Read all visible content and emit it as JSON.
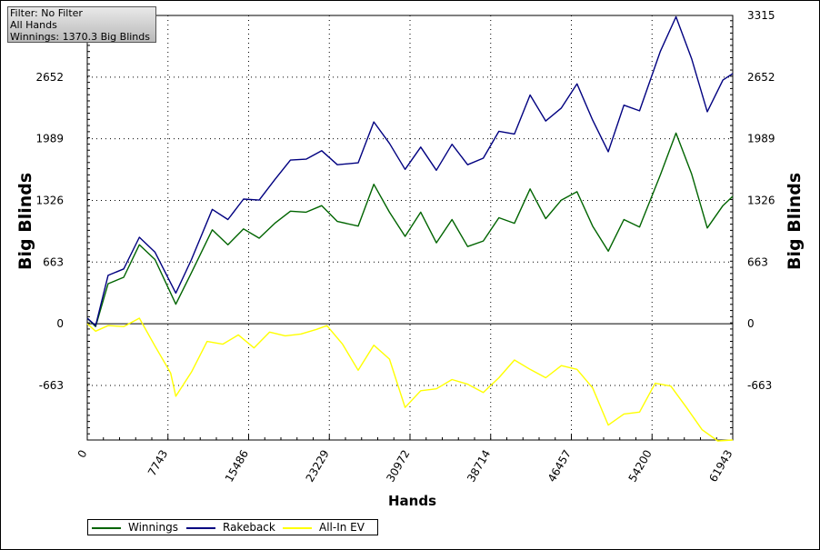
{
  "infobox": {
    "filter": "Filter: No Filter",
    "hands": "All Hands",
    "winnings": "Winnings: 1370.3 Big Blinds"
  },
  "chart_data": {
    "type": "line",
    "xlabel": "Hands",
    "ylabel_left": "Big Blinds",
    "ylabel_right": "Big Blinds",
    "xlim": [
      0,
      61943
    ],
    "ylim": [
      -1250,
      3315
    ],
    "x_ticks": [
      0,
      7743,
      15486,
      23229,
      30972,
      38714,
      46457,
      54200,
      61943
    ],
    "y_ticks": [
      -663,
      0,
      663,
      1326,
      1989,
      2652,
      3315
    ],
    "y_tick_labels_left": [
      "-663",
      "0",
      "663",
      "1326",
      "1989",
      "2652"
    ],
    "y_tick_labels_right": [
      "-663",
      "0",
      "663",
      "1326",
      "1989",
      "2652",
      "3315"
    ],
    "grid": true,
    "legend_position": "bottom-left",
    "series": [
      {
        "name": "Winnings",
        "color": "#006400",
        "x": [
          0,
          800,
          2000,
          3500,
          5000,
          6500,
          8500,
          10000,
          12000,
          13500,
          15000,
          16500,
          18000,
          19500,
          21000,
          22500,
          24000,
          26000,
          27500,
          29000,
          30500,
          32000,
          33500,
          35000,
          36500,
          38000,
          39500,
          41000,
          42500,
          44000,
          45500,
          47000,
          48500,
          50000,
          51500,
          53000,
          55000,
          56500,
          58000,
          59500,
          61000,
          61943
        ],
        "y": [
          60,
          -30,
          430,
          500,
          850,
          690,
          210,
          550,
          1010,
          850,
          1020,
          920,
          1080,
          1210,
          1200,
          1270,
          1100,
          1050,
          1500,
          1200,
          940,
          1200,
          870,
          1120,
          830,
          890,
          1140,
          1080,
          1450,
          1130,
          1330,
          1420,
          1050,
          780,
          1120,
          1040,
          1600,
          2050,
          1610,
          1030,
          1270,
          1370
        ]
      },
      {
        "name": "Rakeback",
        "color": "#000080",
        "x": [
          0,
          800,
          2000,
          3500,
          5000,
          6500,
          8500,
          10000,
          12000,
          13500,
          15000,
          16500,
          18000,
          19500,
          21000,
          22500,
          24000,
          26000,
          27500,
          29000,
          30500,
          32000,
          33500,
          35000,
          36500,
          38000,
          39500,
          41000,
          42500,
          44000,
          45500,
          47000,
          48500,
          50000,
          51500,
          53000,
          55000,
          56500,
          58000,
          59500,
          61000,
          61943
        ],
        "y": [
          60,
          -20,
          520,
          590,
          930,
          770,
          330,
          690,
          1230,
          1120,
          1340,
          1330,
          1550,
          1760,
          1770,
          1860,
          1710,
          1730,
          2170,
          1940,
          1660,
          1900,
          1650,
          1930,
          1710,
          1780,
          2070,
          2040,
          2460,
          2180,
          2320,
          2580,
          2190,
          1850,
          2350,
          2290,
          2930,
          3300,
          2850,
          2280,
          2620,
          2690
        ]
      },
      {
        "name": "All-In EV",
        "color": "#ffff00",
        "x": [
          0,
          800,
          2000,
          3500,
          5000,
          6500,
          8000,
          8500,
          10000,
          11500,
          13000,
          14500,
          16000,
          17500,
          19000,
          20500,
          22000,
          23000,
          24500,
          26000,
          27500,
          29000,
          30500,
          32000,
          33500,
          35000,
          36500,
          38000,
          39500,
          41000,
          42500,
          44000,
          45500,
          47000,
          48500,
          50000,
          51500,
          53000,
          54500,
          56000,
          57500,
          59000,
          60500,
          61943
        ],
        "y": [
          0,
          -80,
          -20,
          -30,
          60,
          -240,
          -530,
          -780,
          -520,
          -190,
          -220,
          -120,
          -260,
          -90,
          -130,
          -110,
          -60,
          -20,
          -220,
          -500,
          -230,
          -380,
          -900,
          -720,
          -700,
          -600,
          -650,
          -740,
          -580,
          -390,
          -490,
          -580,
          -450,
          -490,
          -690,
          -1090,
          -970,
          -950,
          -640,
          -670,
          -900,
          -1140,
          -1260,
          -1250
        ]
      }
    ]
  }
}
